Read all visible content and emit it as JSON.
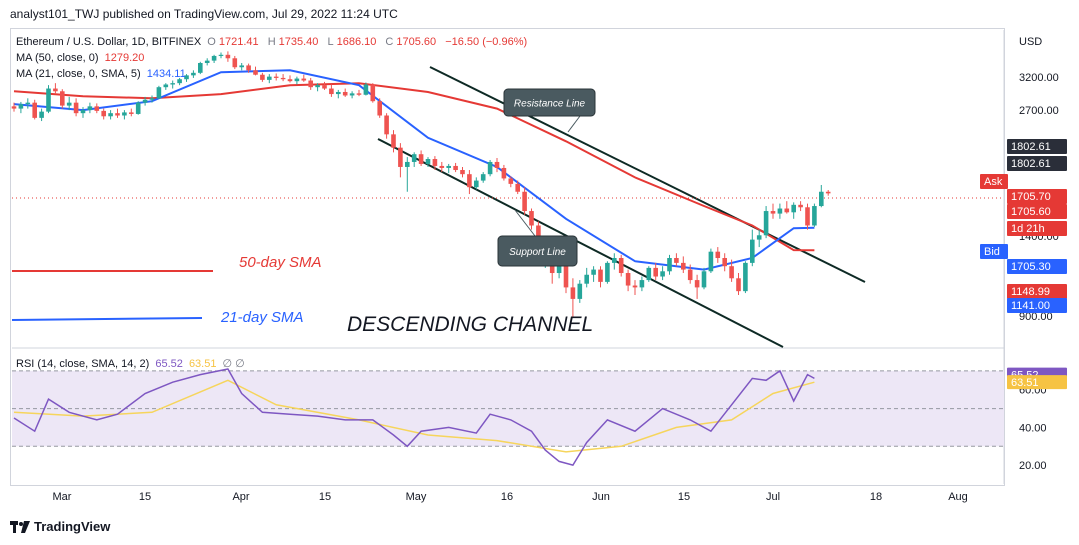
{
  "header": {
    "published": "analyst101_TWJ published on TradingView.com, Jul 29, 2022 11:24 UTC"
  },
  "info": {
    "symbol": "Ethereum / U.S. Dollar, 1D, BITFINEX",
    "o_label": "O",
    "o": "1721.41",
    "h_label": "H",
    "h": "1735.40",
    "l_label": "L",
    "l": "1686.10",
    "c_label": "C",
    "c": "1705.60",
    "change": "−16.50 (−0.96%)",
    "ma50_label": "MA (50, close, 0)",
    "ma50": "1279.20",
    "ma21_label": "MA (21, close, 0, SMA, 5)",
    "ma21": "1434.11",
    "rsi_label": "RSI (14, close, SMA, 14, 2)",
    "rsi": "65.52",
    "rsi_sma": "63.51",
    "rsi_extra": "∅ ∅"
  },
  "price_axis": {
    "currency": "USD",
    "ticks": [
      "3200.00",
      "2700.00",
      "1400.00",
      "900.00"
    ],
    "tags": [
      {
        "text": "1802.61",
        "color": "#2a2e39"
      },
      {
        "text": "1802.61",
        "color": "#2a2e39"
      },
      {
        "text": "Ask",
        "color": "#e53935"
      },
      {
        "text": "1705.70",
        "color": "#e53935"
      },
      {
        "text": "1705.60",
        "color": "#e53935"
      },
      {
        "text": "1d 21h",
        "color": "#e53935"
      },
      {
        "text": "Bid",
        "color": "#2962ff"
      },
      {
        "text": "1705.30",
        "color": "#2962ff"
      },
      {
        "text": "1148.99",
        "color": "#e53935"
      },
      {
        "text": "1141.00",
        "color": "#2962ff"
      }
    ]
  },
  "rsi_axis": {
    "ticks": [
      "60.00",
      "40.00",
      "20.00"
    ]
  },
  "time_axis": {
    "labels": [
      "Mar",
      "15",
      "Apr",
      "15",
      "May",
      "16",
      "Jun",
      "15",
      "Jul",
      "18",
      "Aug"
    ]
  },
  "annotations": {
    "resistance": "Resistance Line",
    "support": "Support Line",
    "sma50": "50-day SMA",
    "sma21": "21-day SMA",
    "channel": "DESCENDING CHANNEL"
  },
  "footer": {
    "brand": "TradingView"
  },
  "colors": {
    "up": "#26a69a",
    "down": "#ef5350",
    "ma50": "#e53935",
    "ma21": "#2962ff",
    "rsi": "#7e57c2",
    "rsi_sma": "#f6d55c",
    "rsi_band": "#ede7f6"
  },
  "chart_data": {
    "type": "candlestick",
    "title": "Ethereum / U.S. Dollar, 1D, BITFINEX",
    "x_range": [
      "2022-02-22",
      "2022-07-29"
    ],
    "ylabel": "USD",
    "candles": [
      [
        2650,
        2700,
        2580,
        2620
      ],
      [
        2620,
        2710,
        2560,
        2680
      ],
      [
        2680,
        2760,
        2620,
        2700
      ],
      [
        2700,
        2740,
        2480,
        2500
      ],
      [
        2500,
        2620,
        2460,
        2580
      ],
      [
        2580,
        2950,
        2560,
        2900
      ],
      [
        2900,
        2980,
        2820,
        2860
      ],
      [
        2860,
        2890,
        2620,
        2660
      ],
      [
        2660,
        2780,
        2600,
        2700
      ],
      [
        2700,
        2760,
        2520,
        2560
      ],
      [
        2560,
        2640,
        2500,
        2600
      ],
      [
        2600,
        2700,
        2560,
        2650
      ],
      [
        2650,
        2690,
        2560,
        2590
      ],
      [
        2590,
        2620,
        2480,
        2520
      ],
      [
        2520,
        2600,
        2480,
        2560
      ],
      [
        2560,
        2620,
        2500,
        2530
      ],
      [
        2530,
        2600,
        2480,
        2570
      ],
      [
        2570,
        2620,
        2520,
        2550
      ],
      [
        2550,
        2720,
        2540,
        2700
      ],
      [
        2700,
        2780,
        2660,
        2740
      ],
      [
        2740,
        2800,
        2700,
        2760
      ],
      [
        2760,
        2940,
        2750,
        2920
      ],
      [
        2920,
        2980,
        2880,
        2960
      ],
      [
        2960,
        3020,
        2900,
        2980
      ],
      [
        2980,
        3060,
        2950,
        3040
      ],
      [
        3040,
        3120,
        3000,
        3100
      ],
      [
        3100,
        3180,
        3060,
        3140
      ],
      [
        3140,
        3320,
        3120,
        3300
      ],
      [
        3300,
        3380,
        3260,
        3340
      ],
      [
        3340,
        3440,
        3300,
        3420
      ],
      [
        3420,
        3480,
        3380,
        3440
      ],
      [
        3440,
        3500,
        3320,
        3380
      ],
      [
        3380,
        3420,
        3200,
        3230
      ],
      [
        3230,
        3300,
        3180,
        3260
      ],
      [
        3260,
        3290,
        3140,
        3180
      ],
      [
        3180,
        3240,
        3100,
        3110
      ],
      [
        3110,
        3140,
        3000,
        3030
      ],
      [
        3030,
        3120,
        2980,
        3080
      ],
      [
        3080,
        3130,
        3020,
        3060
      ],
      [
        3060,
        3120,
        3010,
        3040
      ],
      [
        3040,
        3100,
        2990,
        3010
      ],
      [
        3010,
        3080,
        2960,
        3050
      ],
      [
        3050,
        3110,
        3000,
        3020
      ],
      [
        3020,
        3060,
        2880,
        2920
      ],
      [
        2920,
        2980,
        2860,
        2950
      ],
      [
        2950,
        3000,
        2880,
        2900
      ],
      [
        2900,
        2960,
        2780,
        2820
      ],
      [
        2820,
        2880,
        2760,
        2850
      ],
      [
        2850,
        2900,
        2780,
        2800
      ],
      [
        2800,
        2860,
        2760,
        2830
      ],
      [
        2830,
        2880,
        2790,
        2810
      ],
      [
        2810,
        2990,
        2800,
        2960
      ],
      [
        2960,
        2980,
        2700,
        2720
      ],
      [
        2720,
        2760,
        2500,
        2530
      ],
      [
        2530,
        2560,
        2250,
        2300
      ],
      [
        2300,
        2350,
        2100,
        2150
      ],
      [
        2150,
        2200,
        1850,
        1950
      ],
      [
        1950,
        2050,
        1720,
        2000
      ],
      [
        2000,
        2100,
        1950,
        2080
      ],
      [
        2080,
        2120,
        1960,
        1980
      ],
      [
        1980,
        2050,
        1950,
        2030
      ],
      [
        2030,
        2060,
        1920,
        1960
      ],
      [
        1960,
        2000,
        1900,
        1940
      ],
      [
        1940,
        1980,
        1890,
        1960
      ],
      [
        1960,
        1990,
        1900,
        1920
      ],
      [
        1920,
        1950,
        1850,
        1880
      ],
      [
        1880,
        1920,
        1700,
        1760
      ],
      [
        1760,
        1850,
        1740,
        1820
      ],
      [
        1820,
        1900,
        1800,
        1880
      ],
      [
        1880,
        2020,
        1860,
        2000
      ],
      [
        2000,
        2040,
        1900,
        1940
      ],
      [
        1940,
        1970,
        1820,
        1840
      ],
      [
        1840,
        1860,
        1760,
        1790
      ],
      [
        1790,
        1820,
        1700,
        1720
      ],
      [
        1720,
        1760,
        1530,
        1560
      ],
      [
        1560,
        1580,
        1420,
        1450
      ],
      [
        1450,
        1480,
        1200,
        1220
      ],
      [
        1220,
        1300,
        1170,
        1270
      ],
      [
        1270,
        1280,
        1080,
        1140
      ],
      [
        1140,
        1230,
        1110,
        1210
      ],
      [
        1210,
        1230,
        1030,
        1060
      ],
      [
        1060,
        1110,
        910,
        1000
      ],
      [
        1000,
        1100,
        980,
        1080
      ],
      [
        1080,
        1170,
        1060,
        1130
      ],
      [
        1130,
        1180,
        1090,
        1160
      ],
      [
        1160,
        1180,
        1060,
        1090
      ],
      [
        1090,
        1210,
        1080,
        1200
      ],
      [
        1200,
        1260,
        1160,
        1230
      ],
      [
        1230,
        1250,
        1120,
        1140
      ],
      [
        1140,
        1160,
        1040,
        1070
      ],
      [
        1070,
        1100,
        1020,
        1060
      ],
      [
        1060,
        1120,
        1040,
        1100
      ],
      [
        1100,
        1180,
        1090,
        1170
      ],
      [
        1170,
        1200,
        1100,
        1120
      ],
      [
        1120,
        1180,
        1100,
        1150
      ],
      [
        1150,
        1250,
        1130,
        1230
      ],
      [
        1230,
        1260,
        1180,
        1200
      ],
      [
        1200,
        1240,
        1140,
        1160
      ],
      [
        1160,
        1190,
        1080,
        1100
      ],
      [
        1100,
        1130,
        1000,
        1060
      ],
      [
        1060,
        1170,
        1050,
        1150
      ],
      [
        1150,
        1290,
        1140,
        1270
      ],
      [
        1270,
        1300,
        1200,
        1230
      ],
      [
        1230,
        1260,
        1150,
        1180
      ],
      [
        1180,
        1220,
        1090,
        1110
      ],
      [
        1110,
        1140,
        1020,
        1040
      ],
      [
        1040,
        1210,
        1030,
        1200
      ],
      [
        1200,
        1420,
        1180,
        1350
      ],
      [
        1350,
        1420,
        1300,
        1380
      ],
      [
        1380,
        1600,
        1360,
        1560
      ],
      [
        1560,
        1620,
        1500,
        1540
      ],
      [
        1540,
        1620,
        1500,
        1580
      ],
      [
        1580,
        1640,
        1540,
        1550
      ],
      [
        1550,
        1630,
        1500,
        1610
      ],
      [
        1610,
        1640,
        1560,
        1590
      ],
      [
        1590,
        1620,
        1420,
        1450
      ],
      [
        1450,
        1620,
        1440,
        1600
      ],
      [
        1600,
        1780,
        1590,
        1720
      ],
      [
        1720,
        1735,
        1686,
        1706
      ]
    ],
    "sma50": [
      [
        0,
        2860
      ],
      [
        10,
        2790
      ],
      [
        20,
        2760
      ],
      [
        30,
        2820
      ],
      [
        40,
        2950
      ],
      [
        50,
        2980
      ],
      [
        60,
        2850
      ],
      [
        70,
        2620
      ],
      [
        80,
        2220
      ],
      [
        90,
        1850
      ],
      [
        100,
        1600
      ],
      [
        107,
        1450
      ],
      [
        113,
        1280
      ],
      [
        116,
        1279
      ]
    ],
    "sma21": [
      [
        0,
        2680
      ],
      [
        10,
        2600
      ],
      [
        20,
        2720
      ],
      [
        30,
        3150
      ],
      [
        40,
        3180
      ],
      [
        50,
        2950
      ],
      [
        60,
        2260
      ],
      [
        70,
        1950
      ],
      [
        80,
        1500
      ],
      [
        90,
        1210
      ],
      [
        100,
        1160
      ],
      [
        107,
        1230
      ],
      [
        113,
        1430
      ],
      [
        116,
        1434
      ]
    ],
    "rsi": [
      [
        0,
        45
      ],
      [
        3,
        38
      ],
      [
        5,
        55
      ],
      [
        8,
        48
      ],
      [
        12,
        44
      ],
      [
        15,
        47
      ],
      [
        19,
        58
      ],
      [
        23,
        64
      ],
      [
        27,
        68
      ],
      [
        31,
        71
      ],
      [
        33,
        58
      ],
      [
        36,
        48
      ],
      [
        40,
        47
      ],
      [
        44,
        46
      ],
      [
        48,
        44
      ],
      [
        52,
        44
      ],
      [
        55,
        36
      ],
      [
        57,
        30
      ],
      [
        59,
        38
      ],
      [
        63,
        40
      ],
      [
        67,
        37
      ],
      [
        69,
        47
      ],
      [
        72,
        44
      ],
      [
        75,
        38
      ],
      [
        77,
        28
      ],
      [
        79,
        22
      ],
      [
        81,
        20
      ],
      [
        83,
        32
      ],
      [
        86,
        44
      ],
      [
        90,
        38
      ],
      [
        94,
        50
      ],
      [
        98,
        44
      ],
      [
        101,
        38
      ],
      [
        104,
        52
      ],
      [
        107,
        66
      ],
      [
        109,
        65
      ],
      [
        111,
        70
      ],
      [
        113,
        54
      ],
      [
        115,
        68
      ],
      [
        116,
        66
      ]
    ],
    "rsi_sma": [
      [
        0,
        48
      ],
      [
        10,
        46
      ],
      [
        20,
        48
      ],
      [
        31,
        65
      ],
      [
        38,
        52
      ],
      [
        50,
        44
      ],
      [
        60,
        36
      ],
      [
        70,
        33
      ],
      [
        80,
        27
      ],
      [
        88,
        30
      ],
      [
        96,
        40
      ],
      [
        104,
        44
      ],
      [
        110,
        58
      ],
      [
        116,
        64
      ]
    ],
    "rsi_ylim": [
      10,
      80
    ],
    "ylim": [
      780,
      3900
    ],
    "y_scale": "log"
  }
}
